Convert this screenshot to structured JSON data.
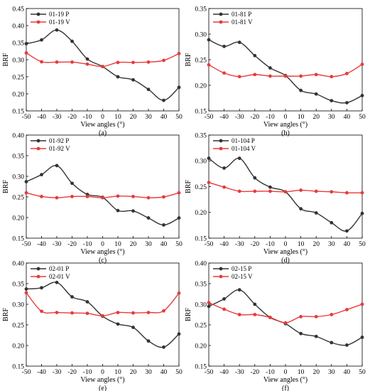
{
  "chart_data": [
    {
      "type": "line",
      "panel_label": "(a)",
      "xlabel": "View angles (°)",
      "ylabel": "BRF",
      "xlim": [
        -50,
        50
      ],
      "ylim": [
        0.15,
        0.45
      ],
      "xticks": [
        "-50",
        "-40",
        "-30",
        "-20",
        "-10",
        "0",
        "10",
        "20",
        "30",
        "40",
        "50"
      ],
      "yticks": [
        "0.15",
        "0.20",
        "0.25",
        "0.30",
        "0.35",
        "0.40",
        "0.45"
      ],
      "x": [
        -50,
        -40,
        -30,
        -20,
        -10,
        0,
        10,
        20,
        30,
        40,
        50
      ],
      "legend_position": "top-left",
      "series": [
        {
          "name": "01-19 P",
          "color": "#333333",
          "values": [
            0.347,
            0.358,
            0.387,
            0.354,
            0.302,
            0.28,
            0.25,
            0.241,
            0.213,
            0.181,
            0.219
          ]
        },
        {
          "name": "01-19 V",
          "color": "#e83a3a",
          "values": [
            0.32,
            0.294,
            0.293,
            0.293,
            0.287,
            0.28,
            0.292,
            0.292,
            0.293,
            0.298,
            0.318
          ]
        }
      ]
    },
    {
      "type": "line",
      "panel_label": "(b)",
      "xlabel": "View angles (°)",
      "ylabel": "BRF",
      "xlim": [
        -50,
        50
      ],
      "ylim": [
        0.15,
        0.35
      ],
      "xticks": [
        "-50",
        "-40",
        "-30",
        "-20",
        "-10",
        "0",
        "10",
        "20",
        "30",
        "40",
        "50"
      ],
      "yticks": [
        "0.15",
        "0.20",
        "0.25",
        "0.30",
        "0.35"
      ],
      "x": [
        -50,
        -40,
        -30,
        -20,
        -10,
        0,
        10,
        20,
        30,
        40,
        50
      ],
      "legend_position": "top-left",
      "series": [
        {
          "name": "01-81 P",
          "color": "#333333",
          "values": [
            0.289,
            0.276,
            0.284,
            0.258,
            0.234,
            0.219,
            0.19,
            0.183,
            0.17,
            0.166,
            0.18
          ]
        },
        {
          "name": "01-81 V",
          "color": "#e83a3a",
          "values": [
            0.24,
            0.224,
            0.217,
            0.221,
            0.218,
            0.218,
            0.218,
            0.221,
            0.217,
            0.223,
            0.241
          ]
        }
      ]
    },
    {
      "type": "line",
      "panel_label": "(c)",
      "xlabel": "View angles (°)",
      "ylabel": "BRF",
      "xlim": [
        -50,
        50
      ],
      "ylim": [
        0.15,
        0.4
      ],
      "xticks": [
        "-50",
        "-40",
        "-30",
        "-20",
        "-10",
        "0",
        "10",
        "20",
        "30",
        "40",
        "50"
      ],
      "yticks": [
        "0.15",
        "0.20",
        "0.25",
        "0.30",
        "0.35",
        "0.40"
      ],
      "x": [
        -50,
        -40,
        -30,
        -20,
        -10,
        0,
        10,
        20,
        30,
        40,
        50
      ],
      "legend_position": "top-left",
      "series": [
        {
          "name": "01-92 P",
          "color": "#333333",
          "values": [
            0.287,
            0.304,
            0.326,
            0.283,
            0.256,
            0.249,
            0.217,
            0.216,
            0.199,
            0.182,
            0.199
          ]
        },
        {
          "name": "01-92 V",
          "color": "#e83a3a",
          "values": [
            0.26,
            0.251,
            0.248,
            0.251,
            0.251,
            0.248,
            0.252,
            0.251,
            0.248,
            0.25,
            0.26
          ]
        }
      ]
    },
    {
      "type": "line",
      "panel_label": "(d)",
      "xlabel": "View angles (°)",
      "ylabel": "BRF",
      "xlim": [
        -50,
        50
      ],
      "ylim": [
        0.15,
        0.35
      ],
      "xticks": [
        "-50",
        "-40",
        "-30",
        "-20",
        "-10",
        "0",
        "10",
        "20",
        "30",
        "40",
        "50"
      ],
      "yticks": [
        "0.15",
        "0.20",
        "0.25",
        "0.30",
        "0.35"
      ],
      "x": [
        -50,
        -40,
        -30,
        -20,
        -10,
        0,
        10,
        20,
        30,
        40,
        50
      ],
      "legend_position": "top-left",
      "series": [
        {
          "name": "01-104 P",
          "color": "#333333",
          "values": [
            0.305,
            0.286,
            0.305,
            0.267,
            0.249,
            0.24,
            0.207,
            0.199,
            0.18,
            0.164,
            0.198
          ]
        },
        {
          "name": "01-104 V",
          "color": "#e83a3a",
          "values": [
            0.258,
            0.249,
            0.241,
            0.241,
            0.241,
            0.24,
            0.243,
            0.241,
            0.24,
            0.238,
            0.238
          ]
        }
      ]
    },
    {
      "type": "line",
      "panel_label": "(e)",
      "xlabel": "View angles (°)",
      "ylabel": "BRF",
      "xlim": [
        -50,
        50
      ],
      "ylim": [
        0.15,
        0.4
      ],
      "xticks": [
        "-50",
        "-40",
        "-30",
        "-20",
        "-10",
        "0",
        "10",
        "20",
        "30",
        "40",
        "50"
      ],
      "yticks": [
        "0.15",
        "0.20",
        "0.25",
        "0.30",
        "0.35",
        "0.40"
      ],
      "x": [
        -50,
        -40,
        -30,
        -20,
        -10,
        0,
        10,
        20,
        30,
        40,
        50
      ],
      "legend_position": "top-left",
      "series": [
        {
          "name": "02-01 P",
          "color": "#333333",
          "values": [
            0.337,
            0.34,
            0.353,
            0.318,
            0.306,
            0.271,
            0.252,
            0.244,
            0.211,
            0.196,
            0.228
          ]
        },
        {
          "name": "02-01 V",
          "color": "#e83a3a",
          "values": [
            0.328,
            0.283,
            0.28,
            0.279,
            0.278,
            0.272,
            0.28,
            0.279,
            0.28,
            0.284,
            0.327
          ]
        }
      ]
    },
    {
      "type": "line",
      "panel_label": "(f)",
      "xlabel": "View angles (°)",
      "ylabel": "BRF",
      "xlim": [
        -50,
        50
      ],
      "ylim": [
        0.15,
        0.4
      ],
      "xticks": [
        "-50",
        "-40",
        "-30",
        "-20",
        "-10",
        "0",
        "10",
        "20",
        "30",
        "40",
        "50"
      ],
      "yticks": [
        "0.15",
        "0.20",
        "0.25",
        "0.30",
        "0.35",
        "0.40"
      ],
      "x": [
        -50,
        -40,
        -30,
        -20,
        -10,
        0,
        10,
        20,
        30,
        40,
        50
      ],
      "legend_position": "top-left",
      "series": [
        {
          "name": "02-15 P",
          "color": "#333333",
          "values": [
            0.295,
            0.313,
            0.335,
            0.3,
            0.268,
            0.253,
            0.229,
            0.222,
            0.207,
            0.201,
            0.22
          ]
        },
        {
          "name": "02-15 V",
          "color": "#e83a3a",
          "values": [
            0.304,
            0.288,
            0.275,
            0.275,
            0.268,
            0.255,
            0.27,
            0.27,
            0.275,
            0.287,
            0.3
          ]
        }
      ]
    }
  ]
}
